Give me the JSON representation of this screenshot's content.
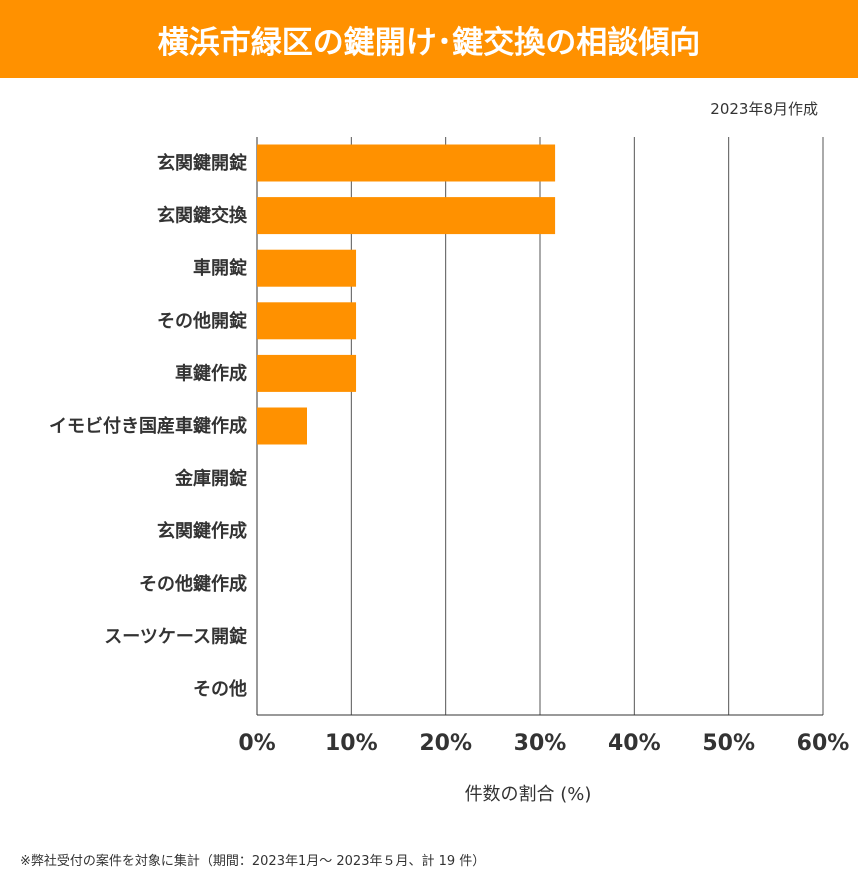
{
  "header": {
    "title": "横浜市緑区の鍵開け･鍵交換の相談傾向",
    "date": "2023年8月作成"
  },
  "footnote": "※弊社受付の案件を対象に集計（期間：2023年1月～ 2023年５月、計 19 件）",
  "colors": {
    "bar": "#ff9100",
    "banner": "#ff9100",
    "grid": "#444444"
  },
  "chart_data": {
    "type": "bar",
    "orientation": "horizontal",
    "categories": [
      "玄関鍵開錠",
      "玄関鍵交換",
      "車開錠",
      "その他開錠",
      "車鍵作成",
      "イモビ付き国産車鍵作成",
      "金庫開錠",
      "玄関鍵作成",
      "その他鍵作成",
      "スーツケース開錠",
      "その他"
    ],
    "values": [
      31.6,
      31.6,
      10.5,
      10.5,
      10.5,
      5.3,
      0,
      0,
      0,
      0,
      0
    ],
    "xlabel": "件数の割合 (%)",
    "xlim": [
      0,
      60
    ],
    "xticks": [
      0,
      10,
      20,
      30,
      40,
      50,
      60
    ],
    "xtick_labels": [
      "0%",
      "10%",
      "20%",
      "30%",
      "40%",
      "50%",
      "60%"
    ],
    "grid": "vertical"
  }
}
